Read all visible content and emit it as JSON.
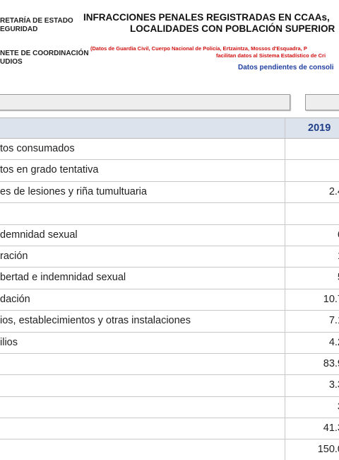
{
  "header": {
    "org_lines": [
      "RETARÍA DE ESTADO",
      "EGURIDAD"
    ],
    "unit_lines": [
      "NETE DE COORDINACIÓN",
      "UDIOS"
    ],
    "title_lines": [
      "INFRACCIONES PENALES REGISTRADAS EN CCAAs,",
      "LOCALIDADES CON POBLACIÓN SUPERIOR"
    ],
    "source_lines": [
      "(Datos de Guardia Civil, Cuerpo Nacional de Policía, Ertzaintza, Mossos d'Esquadra, P",
      "facilitan datos al Sistema Estadístico de Cri"
    ],
    "note": "Datos pendientes de consoli"
  },
  "table": {
    "year": "2019",
    "rows": [
      {
        "label": "tos consumados"
      },
      {
        "label": "tos en grado tentativa"
      },
      {
        "label": "es de lesiones y riña tumultuaria",
        "value": "2.4"
      },
      {},
      {
        "label": "demnidad sexual",
        "value": "6"
      },
      {
        "label": "ración",
        "value": "1"
      },
      {
        "label": "bertad e indemnidad sexual",
        "value": "5"
      },
      {
        "label": "dación",
        "value": "10.7"
      },
      {
        "label": "ios, establecimientos y otras instalaciones",
        "value": "7.1"
      },
      {
        "label": "ilios",
        "value": "4.2"
      },
      {
        "value": "83.9"
      },
      {
        "value": "3.3"
      },
      {
        "value": "3"
      },
      {
        "value": "41.3"
      },
      {
        "value": "150.0"
      }
    ]
  }
}
